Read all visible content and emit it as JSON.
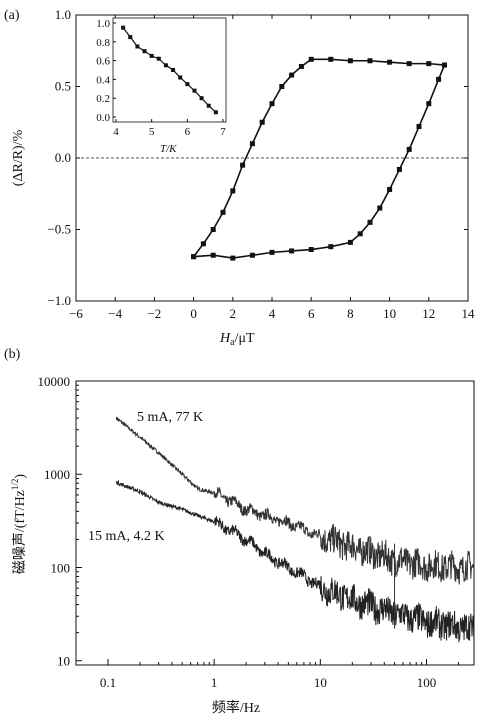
{
  "panel_a": {
    "panel_label": "(a)",
    "xlabel_main": "H",
    "xlabel_sub": "a",
    "xlabel_unit": "/μT",
    "ylabel": "(ΔR/R)/%",
    "xticks": [
      "−6",
      "−4",
      "−2",
      "0",
      "2",
      "4",
      "6",
      "8",
      "10",
      "12",
      "14"
    ],
    "yticks": [
      "−1.0",
      "−0.5",
      "0.0",
      "0.5",
      "1.0"
    ],
    "inset": {
      "xlabel": "T/K",
      "xticks": [
        "4",
        "5",
        "6",
        "7"
      ],
      "yticks": [
        "0.0",
        "0.2",
        "0.4",
        "0.6",
        "0.8",
        "1.0"
      ]
    }
  },
  "panel_b": {
    "panel_label": "(b)",
    "xlabel": "频率/Hz",
    "ylabel": "磁噪声/(fT/Hz^1/2)",
    "ylabel_main": "磁噪声/(fT/Hz",
    "ylabel_sup": "1/2",
    "ylabel_close": ")",
    "xticks": [
      "0.1",
      "1",
      "10",
      "100"
    ],
    "yticks": [
      "10",
      "100",
      "1000",
      "10000"
    ],
    "annotation_upper": "5 mA, 77 K",
    "annotation_lower": "15 mA, 4.2 K"
  },
  "chart_data": [
    {
      "type": "line",
      "panel": "(a)",
      "xlabel": "Ha/μT",
      "ylabel": "(ΔR/R)/%",
      "xlim": [
        -6,
        14
      ],
      "ylim": [
        -1.0,
        1.0
      ],
      "reference_line_y": 0.0,
      "series": [
        {
          "x": [
            0,
            0.5,
            1,
            1.5,
            2,
            2.5,
            3,
            3.5,
            4,
            4.5,
            5,
            5.5,
            6,
            7,
            8,
            9,
            10,
            11,
            12,
            12.8
          ],
          "y": [
            -0.69,
            -0.6,
            -0.5,
            -0.38,
            -0.23,
            -0.05,
            0.1,
            0.25,
            0.38,
            0.5,
            0.58,
            0.64,
            0.69,
            0.69,
            0.68,
            0.68,
            0.67,
            0.66,
            0.66,
            0.65
          ]
        },
        {
          "x": [
            12.8,
            12.5,
            12,
            11.5,
            11,
            10.5,
            10,
            9.5,
            9,
            8.5,
            8,
            7,
            6,
            5,
            4,
            3,
            2,
            1,
            0
          ],
          "y": [
            0.65,
            0.55,
            0.38,
            0.22,
            0.06,
            -0.08,
            -0.22,
            -0.35,
            -0.45,
            -0.53,
            -0.59,
            -0.62,
            -0.64,
            -0.65,
            -0.66,
            -0.68,
            -0.7,
            -0.68,
            -0.69
          ]
        }
      ],
      "inset": {
        "type": "line",
        "xlabel": "T/K",
        "xlim": [
          4,
          7
        ],
        "ylim": [
          0.0,
          1.0
        ],
        "x": [
          4.2,
          4.4,
          4.6,
          4.8,
          5.0,
          5.2,
          5.4,
          5.6,
          5.8,
          6.0,
          6.2,
          6.4,
          6.6,
          6.8
        ],
        "y": [
          0.95,
          0.85,
          0.75,
          0.7,
          0.65,
          0.62,
          0.55,
          0.5,
          0.42,
          0.35,
          0.28,
          0.2,
          0.12,
          0.05
        ]
      }
    },
    {
      "type": "line",
      "panel": "(b)",
      "xlabel": "频率/Hz",
      "ylabel": "磁噪声/(fT/Hz^1/2)",
      "xscale": "log",
      "yscale": "log",
      "xlim": [
        0.05,
        280
      ],
      "ylim": [
        9,
        10000
      ],
      "series": [
        {
          "name": "5 mA, 77 K",
          "x": [
            0.12,
            0.2,
            0.3,
            0.5,
            0.7,
            1,
            1.5,
            2,
            3,
            5,
            10,
            20,
            50,
            100,
            200,
            280
          ],
          "y": [
            4000,
            2500,
            1700,
            1000,
            700,
            630,
            500,
            420,
            360,
            300,
            215,
            165,
            120,
            105,
            100,
            100
          ]
        },
        {
          "name": "15 mA, 4.2 K",
          "x": [
            0.12,
            0.2,
            0.3,
            0.5,
            0.7,
            1,
            1.5,
            2,
            3,
            5,
            10,
            20,
            50,
            100,
            200,
            280
          ],
          "y": [
            820,
            650,
            500,
            420,
            360,
            310,
            240,
            200,
            140,
            100,
            62,
            45,
            32,
            26,
            23,
            22
          ]
        }
      ]
    }
  ]
}
